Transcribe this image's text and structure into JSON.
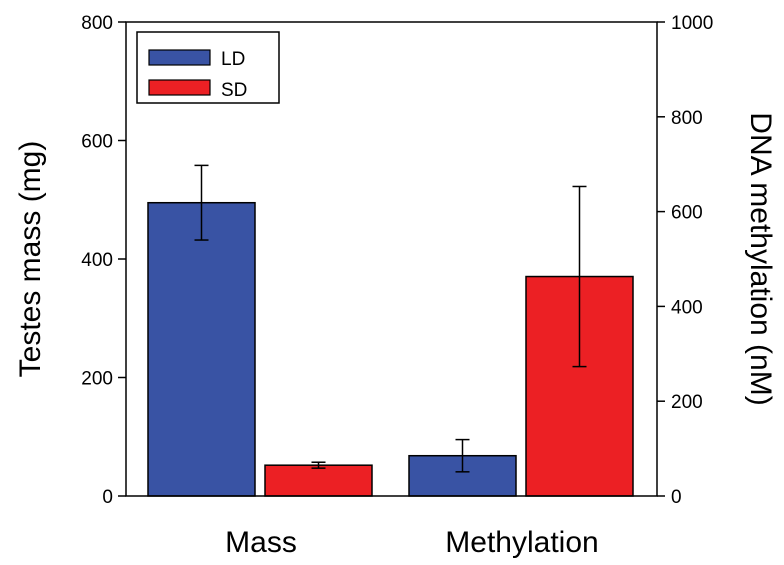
{
  "chart_data": {
    "type": "bar",
    "categories": [
      "Mass",
      "Methylation"
    ],
    "series": [
      {
        "name": "LD",
        "color": "#3953a4",
        "values": [
          495,
          85
        ],
        "errors": [
          63,
          34
        ],
        "axis": [
          "left",
          "right"
        ]
      },
      {
        "name": "SD",
        "color": "#ec2024",
        "values": [
          52,
          463
        ],
        "errors": [
          5,
          190
        ],
        "axis": [
          "left",
          "right"
        ]
      }
    ],
    "ylabel_left": "Testes mass (mg)",
    "ylabel_right": "DNA methylation (nM)",
    "ylim_left": [
      0,
      800
    ],
    "ylim_right": [
      0,
      1000
    ],
    "yticks_left": [
      "0",
      "200",
      "400",
      "600",
      "800"
    ],
    "yticks_right": [
      "0",
      "200",
      "400",
      "600",
      "800",
      "1000"
    ],
    "legend": {
      "position": "top-left",
      "entries": [
        "LD",
        "SD"
      ]
    },
    "grid": false
  }
}
